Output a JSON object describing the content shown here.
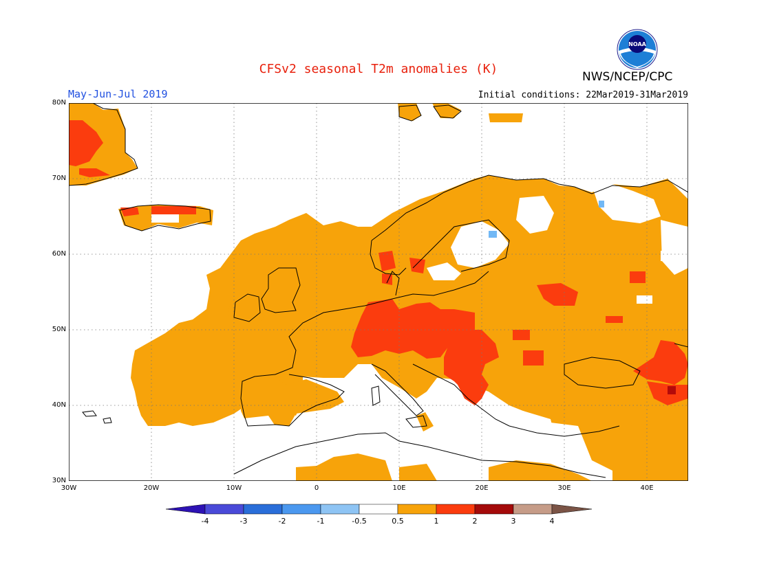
{
  "header": {
    "title": "CFSv2 seasonal T2m anomalies (K)",
    "agency": "NWS/NCEP/CPC",
    "period": "May-Jun-Jul 2019",
    "initial_conditions": "Initial conditions: 22Mar2019-31Mar2019",
    "logo_text": "NOAA"
  },
  "map": {
    "lon_range": [
      -30,
      45
    ],
    "lat_range": [
      30,
      80
    ],
    "lat_labels": [
      "80N",
      "70N",
      "60N",
      "50N",
      "40N",
      "30N"
    ],
    "lon_labels": [
      "30W",
      "20W",
      "10W",
      "0",
      "10E",
      "20E",
      "30E",
      "40E"
    ],
    "anomaly_colors": {
      "neg_1": "#71b8f5",
      "pos_0_5_1": "#f7a30a",
      "pos_1_2": "#fb3c0e",
      "pos_2_3": "#b40a0a"
    }
  },
  "legend": {
    "labels": [
      "-4",
      "-3",
      "-2",
      "-1",
      "-0.5",
      "0.5",
      "1",
      "2",
      "3",
      "4"
    ],
    "colors": [
      "#2d12b4",
      "#4a4ad8",
      "#2a6ed9",
      "#4b98ef",
      "#8ec4f4",
      "#ffffff",
      "#f7a30a",
      "#fb3c0e",
      "#a40a0a",
      "#c69c88",
      "#7b5446"
    ]
  }
}
